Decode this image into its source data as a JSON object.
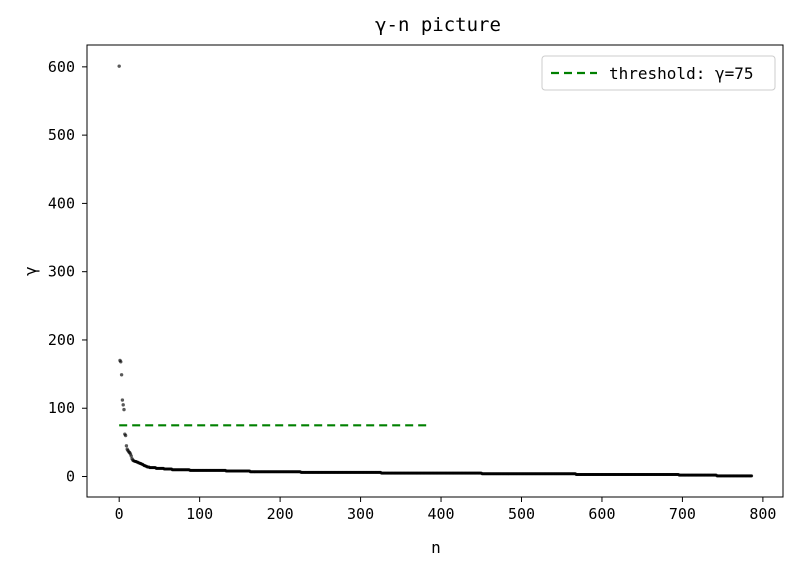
{
  "chart_data": {
    "type": "scatter",
    "title": "γ-n picture",
    "xlabel": "n",
    "ylabel": "γ",
    "xlim": [
      -40,
      825
    ],
    "ylim": [
      -30,
      632
    ],
    "xticks": [
      0,
      100,
      200,
      300,
      400,
      500,
      600,
      700,
      800
    ],
    "yticks": [
      0,
      100,
      200,
      300,
      400,
      500,
      600
    ],
    "grid": false,
    "legend_position": "top-right",
    "series": [
      {
        "kind": "points",
        "color": "#000000",
        "anchor_points": [
          [
            0,
            601
          ],
          [
            1,
            170
          ],
          [
            2,
            168
          ],
          [
            3,
            149
          ],
          [
            4,
            112
          ],
          [
            5,
            105
          ],
          [
            6,
            98
          ],
          [
            7,
            62
          ],
          [
            8,
            60
          ],
          [
            9,
            45
          ],
          [
            10,
            40
          ],
          [
            11,
            38
          ],
          [
            12,
            36
          ],
          [
            13,
            35
          ],
          [
            14,
            33
          ],
          [
            15,
            30
          ],
          [
            16,
            26
          ],
          [
            17,
            24
          ],
          [
            18,
            23
          ],
          [
            20,
            22
          ],
          [
            25,
            20
          ],
          [
            30,
            17
          ],
          [
            35,
            14
          ],
          [
            40,
            13
          ],
          [
            50,
            12
          ],
          [
            60,
            11
          ],
          [
            70,
            10
          ],
          [
            80,
            10
          ],
          [
            95,
            9
          ],
          [
            120,
            9
          ],
          [
            145,
            8
          ],
          [
            180,
            7
          ],
          [
            220,
            7
          ],
          [
            230,
            6
          ],
          [
            300,
            6
          ],
          [
            350,
            5
          ],
          [
            400,
            5
          ],
          [
            500,
            4
          ],
          [
            565,
            4
          ],
          [
            570,
            3
          ],
          [
            650,
            3
          ],
          [
            740,
            2
          ],
          [
            745,
            1
          ],
          [
            786,
            1
          ]
        ]
      },
      {
        "name": "threshold: γ=75",
        "kind": "hline",
        "y": 75,
        "x_start": 0,
        "x_end": 386,
        "color": "#008000",
        "style": "dashed"
      }
    ]
  }
}
